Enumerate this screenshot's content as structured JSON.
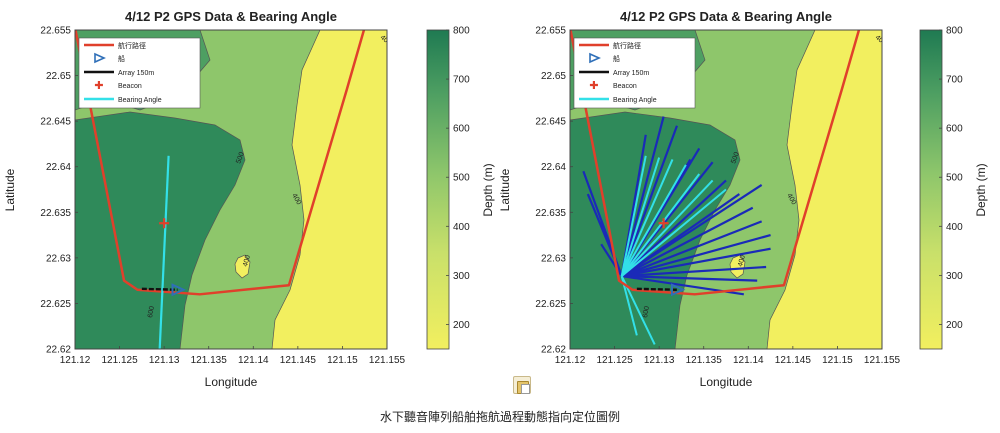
{
  "caption": "水下聽音陣列船舶拖航過程動態指向定位圖例",
  "icons": {
    "paste_options": "paste-options-icon"
  },
  "colors": {
    "deep": "#2f8a5a",
    "mid_deep": "#4e9f62",
    "mid": "#8ec66b",
    "shallow": "#f2ef5f",
    "track": "#e0402b",
    "ship": "#2f6fb8",
    "array": "#111111",
    "beacon": "#e0402b",
    "bearing": "#33e0e8",
    "bearing_dense": "#1a2ab8"
  },
  "chart_data": [
    {
      "type": "contour",
      "title": "4/12 P2 GPS Data & Bearing Angle",
      "xlabel": "Longitude",
      "ylabel": "Latitude",
      "xlim": [
        121.12,
        121.155
      ],
      "ylim": [
        22.62,
        22.655
      ],
      "xticks": [
        "121.12",
        "121.125",
        "121.13",
        "121.135",
        "121.14",
        "121.145",
        "121.15",
        "121.155"
      ],
      "yticks": [
        "22.62",
        "22.625",
        "22.63",
        "22.635",
        "22.64",
        "22.645",
        "22.65",
        "22.655"
      ],
      "colorbar": {
        "label": "Depth (m)",
        "range": [
          150,
          800
        ],
        "ticks": [
          "200",
          "300",
          "400",
          "500",
          "600",
          "700",
          "800"
        ]
      },
      "contour_labels": [
        "600",
        "500",
        "400",
        "400",
        "600",
        "400"
      ],
      "legend": {
        "position": "top-left",
        "entries": [
          "航行路徑",
          "船",
          "Array 150m",
          "Beacon",
          "Bearing Angle"
        ]
      },
      "track": [
        [
          121.135,
          22.6553
        ],
        [
          121.12,
          22.6553
        ],
        [
          121.1255,
          22.6275
        ],
        [
          121.127,
          22.6265
        ],
        [
          121.134,
          22.626
        ],
        [
          121.144,
          22.627
        ],
        [
          121.1505,
          22.6485
        ],
        [
          121.1525,
          22.6553
        ]
      ],
      "ship": [
        121.1315,
        22.6265
      ],
      "array": [
        [
          121.1275,
          22.6266
        ],
        [
          121.1315,
          22.6265
        ]
      ],
      "beacon": [
        121.13,
        22.6338
      ],
      "bearings": [
        [
          121.1305,
          22.6412,
          121.1295,
          22.62
        ]
      ]
    },
    {
      "type": "contour",
      "title": "4/12 P2 GPS Data & Bearing Angle",
      "xlabel": "Longitude",
      "ylabel": "Latitude",
      "xlim": [
        121.12,
        121.155
      ],
      "ylim": [
        22.62,
        22.655
      ],
      "xticks": [
        "121.12",
        "121.125",
        "121.13",
        "121.135",
        "121.14",
        "121.145",
        "121.15",
        "121.155"
      ],
      "yticks": [
        "22.62",
        "22.625",
        "22.63",
        "22.635",
        "22.64",
        "22.645",
        "22.65",
        "22.655"
      ],
      "colorbar": {
        "label": "Depth (m)",
        "range": [
          150,
          800
        ],
        "ticks": [
          "200",
          "300",
          "400",
          "500",
          "600",
          "700",
          "800"
        ]
      },
      "contour_labels": [
        "600",
        "500",
        "400",
        "400",
        "600",
        "400"
      ],
      "legend": {
        "position": "top-left",
        "entries": [
          "航行路徑",
          "船",
          "Array 150m",
          "Beacon",
          "Bearing Angle"
        ]
      },
      "track": [
        [
          121.135,
          22.6553
        ],
        [
          121.12,
          22.6553
        ],
        [
          121.1255,
          22.6275
        ],
        [
          121.127,
          22.6265
        ],
        [
          121.134,
          22.626
        ],
        [
          121.144,
          22.627
        ],
        [
          121.1505,
          22.6485
        ],
        [
          121.1525,
          22.6553
        ]
      ],
      "ship": [
        121.132,
        22.6265
      ],
      "array": [
        [
          121.1275,
          22.6266
        ],
        [
          121.132,
          22.6265
        ]
      ],
      "beacon": [
        121.1305,
        22.6338
      ],
      "fan_origin": [
        121.1258,
        22.628
      ],
      "fan_blue_tips": [
        [
          121.1215,
          22.6395
        ],
        [
          121.122,
          22.637
        ],
        [
          121.1235,
          22.634
        ],
        [
          121.1235,
          22.6315
        ],
        [
          121.1285,
          22.6435
        ],
        [
          121.1305,
          22.6455
        ],
        [
          121.132,
          22.6445
        ],
        [
          121.1345,
          22.642
        ],
        [
          121.136,
          22.6405
        ],
        [
          121.1375,
          22.6385
        ],
        [
          121.139,
          22.637
        ],
        [
          121.1405,
          22.6355
        ],
        [
          121.1415,
          22.634
        ],
        [
          121.1425,
          22.6325
        ],
        [
          121.1425,
          22.631
        ],
        [
          121.142,
          22.629
        ],
        [
          121.141,
          22.6275
        ],
        [
          121.1395,
          22.626
        ],
        [
          121.1415,
          22.638
        ],
        [
          121.1335,
          22.6408
        ]
      ],
      "fan_cyan_tips": [
        [
          121.1285,
          22.6412
        ],
        [
          121.13,
          22.641
        ],
        [
          121.1315,
          22.6408
        ],
        [
          121.133,
          22.6402
        ],
        [
          121.1345,
          22.6392
        ],
        [
          121.136,
          22.6385
        ],
        [
          121.1375,
          22.6375
        ],
        [
          121.1295,
          22.6205
        ],
        [
          121.1275,
          22.6215
        ]
      ]
    }
  ]
}
